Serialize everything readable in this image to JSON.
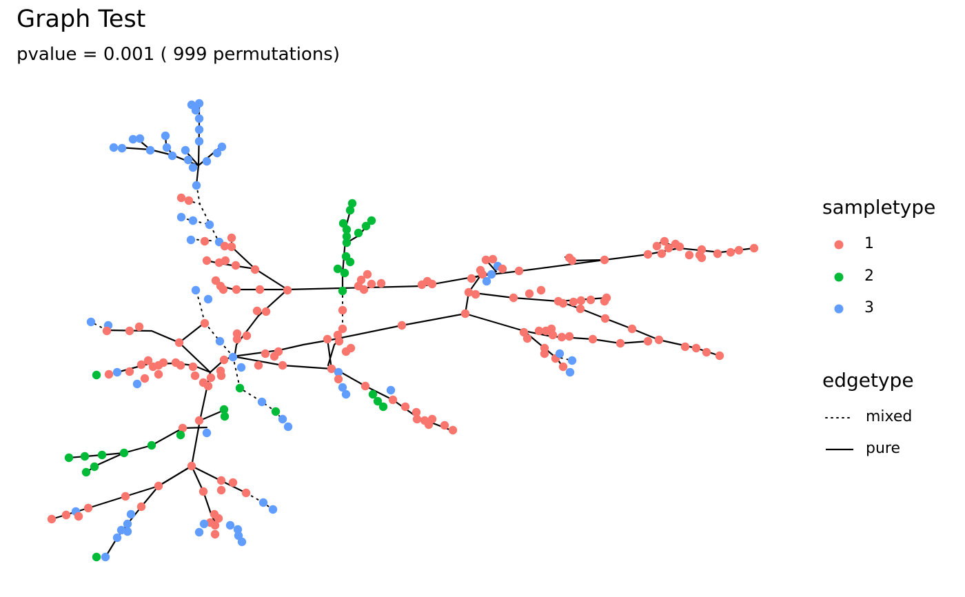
{
  "title": "Graph Test",
  "subtitle": "pvalue =  0.001 ( 999  permutations)",
  "legend": {
    "sampletype_title": "sampletype",
    "sampletype_items": [
      {
        "label": "1",
        "color": "#F8766D"
      },
      {
        "label": "2",
        "color": "#00BA38"
      },
      {
        "label": "3",
        "color": "#619CFF"
      }
    ],
    "edgetype_title": "edgetype",
    "edgetype_items": [
      {
        "label": "mixed",
        "style": "dotted"
      },
      {
        "label": "pure",
        "style": "solid"
      }
    ]
  },
  "chart_data": {
    "type": "network",
    "title": "Graph Test",
    "subtitle": "pvalue =  0.001 ( 999  permutations)",
    "axes": "none",
    "grid": false,
    "legend_placement": "right",
    "colors": {
      "1": "#F8766D",
      "2": "#00BA38",
      "3": "#619CFF"
    },
    "node_counts_estimated": {
      "1": 150,
      "2": 30,
      "3": 70
    },
    "edge_types": [
      "mixed",
      "pure"
    ]
  }
}
